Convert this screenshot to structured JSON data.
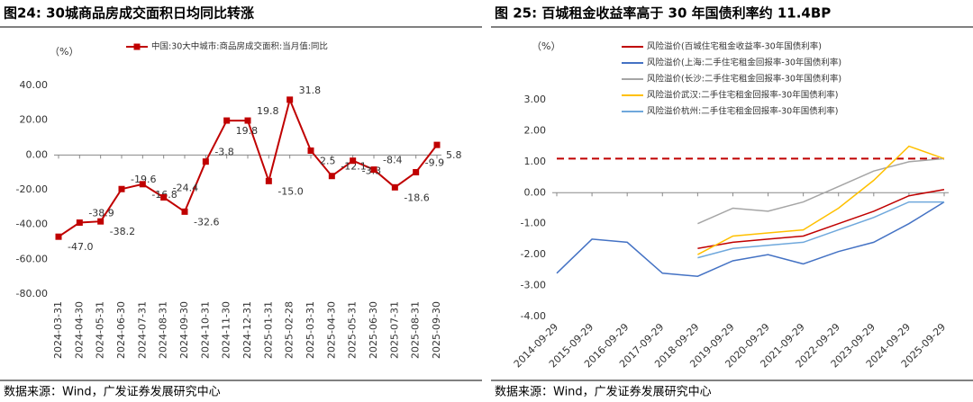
{
  "chart_data": [
    {
      "type": "line",
      "title": "图24:  30城商品房成交面积日均同比转涨",
      "source": "数据来源：Wind，广发证券发展研究中心",
      "unit": "（%）",
      "categories": [
        "2024-03-31",
        "2024-04-30",
        "2024-05-31",
        "2024-06-30",
        "2024-07-31",
        "2024-08-31",
        "2024-09-30",
        "2024-10-31",
        "2024-11-30",
        "2024-12-31",
        "2025-01-31",
        "2025-02-28",
        "2025-03-31",
        "2025-04-30",
        "2025-05-31",
        "2025-06-30",
        "2025-07-31",
        "2025-08-31",
        "2025-09-30"
      ],
      "series": [
        {
          "name": "中国:30大中城市:商品房成交面积:当月值:同比",
          "color": "#c00000",
          "values": [
            -47.0,
            -38.9,
            -38.2,
            -19.6,
            -16.8,
            -24.4,
            -32.6,
            -3.8,
            19.8,
            19.8,
            -15.0,
            31.8,
            2.5,
            -12.1,
            -3.3,
            -8.4,
            -18.6,
            -9.9,
            5.8
          ],
          "value_labels": [
            "-47.0",
            "-38.9",
            "-38.2",
            "-19.6",
            "-16.8",
            "-24.4",
            "-32.6",
            "-3.8",
            "19.8",
            "19.8",
            "-15.0",
            "31.8",
            "2.5",
            "-12.1",
            "-3.3",
            "-8.4",
            "-18.6",
            "-9.9",
            "5.8"
          ]
        }
      ],
      "ylim": [
        -80,
        40
      ],
      "yticks": [
        {
          "value": -80,
          "label": "-80.00"
        },
        {
          "value": -60,
          "label": "-60.00"
        },
        {
          "value": -40,
          "label": "-40.00"
        },
        {
          "value": -20,
          "label": "-20.00"
        },
        {
          "value": 0,
          "label": "0.00"
        },
        {
          "value": 20,
          "label": "20.00"
        },
        {
          "value": 40,
          "label": "40.00"
        }
      ]
    },
    {
      "type": "line",
      "title": "图 25:  百城租金收益率高于 30 年国债利率约 11.4BP",
      "source": "数据来源：Wind，广发证券发展研究中心",
      "unit": "（%）",
      "categories": [
        "2014-09-29",
        "2015-09-29",
        "2016-09-29",
        "2017-09-29",
        "2018-09-29",
        "2019-09-29",
        "2020-09-29",
        "2021-09-29",
        "2022-09-29",
        "2023-09-29",
        "2024-09-29",
        "2025-09-29"
      ],
      "series": [
        {
          "name": "风险溢价(百城住宅租金收益率-30年国债利率)",
          "color": "#c00000",
          "values": [
            null,
            null,
            null,
            null,
            -1.8,
            -1.6,
            -1.5,
            -1.4,
            -1.0,
            -0.6,
            -0.1,
            0.1
          ]
        },
        {
          "name": "风险溢价(上海:二手住宅租金回报率-30年国债利率)",
          "color": "#4472c4",
          "values": [
            -2.6,
            -1.5,
            -1.6,
            -2.6,
            -2.7,
            -2.2,
            -2.0,
            -2.3,
            -1.9,
            -1.6,
            -1.0,
            -0.3
          ]
        },
        {
          "name": "风险溢价(长沙:二手住宅租金回报率-30年国债利率)",
          "color": "#a5a5a5",
          "values": [
            null,
            null,
            null,
            null,
            -1.0,
            -0.5,
            -0.6,
            -0.3,
            0.2,
            0.7,
            1.0,
            1.1
          ]
        },
        {
          "name": "风险溢价武汉:二手住宅租金回报率-30年国债利率)",
          "color": "#ffc000",
          "values": [
            null,
            null,
            null,
            null,
            -2.0,
            -1.4,
            -1.3,
            -1.2,
            -0.5,
            0.4,
            1.5,
            1.1
          ]
        },
        {
          "name": "风险溢价杭州:二手住宅租金回报率-30年国债利率)",
          "color": "#6fa8dc",
          "values": [
            null,
            null,
            null,
            null,
            -2.1,
            -1.8,
            -1.7,
            -1.6,
            -1.2,
            -0.8,
            -0.3,
            -0.3
          ]
        }
      ],
      "reference_line": 1.1,
      "ylim": [
        -4,
        3
      ],
      "yticks": [
        {
          "value": -4,
          "label": "-4.00"
        },
        {
          "value": -3,
          "label": "-3.00"
        },
        {
          "value": -2,
          "label": "-2.00"
        },
        {
          "value": -1,
          "label": "-1.00"
        },
        {
          "value": 0,
          "label": "0.00"
        },
        {
          "value": 1,
          "label": "1.00"
        },
        {
          "value": 2,
          "label": "2.00"
        },
        {
          "value": 3,
          "label": "3.00"
        }
      ]
    }
  ]
}
